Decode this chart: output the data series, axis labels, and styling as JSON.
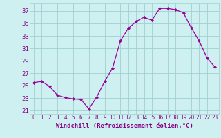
{
  "x": [
    0,
    1,
    2,
    3,
    4,
    5,
    6,
    7,
    8,
    9,
    10,
    11,
    12,
    13,
    14,
    15,
    16,
    17,
    18,
    19,
    20,
    21,
    22,
    23
  ],
  "y": [
    25.5,
    25.7,
    24.9,
    23.5,
    23.1,
    22.9,
    22.8,
    21.3,
    23.2,
    25.7,
    27.8,
    32.2,
    34.2,
    35.3,
    36.0,
    35.5,
    37.4,
    37.4,
    37.2,
    36.7,
    34.3,
    32.2,
    29.5,
    28.0
  ],
  "line_color": "#990099",
  "marker": "D",
  "marker_size": 2,
  "xlabel": "Windchill (Refroidissement éolien,°C)",
  "xlim": [
    -0.5,
    23.5
  ],
  "ylim": [
    20.5,
    38.2
  ],
  "yticks": [
    21,
    23,
    25,
    27,
    29,
    31,
    33,
    35,
    37
  ],
  "xticks": [
    0,
    1,
    2,
    3,
    4,
    5,
    6,
    7,
    8,
    9,
    10,
    11,
    12,
    13,
    14,
    15,
    16,
    17,
    18,
    19,
    20,
    21,
    22,
    23
  ],
  "bg_color": "#cff0f0",
  "grid_color": "#a0d0d0",
  "tick_color": "#880088",
  "label_color": "#880088",
  "xlabel_fontsize": 6.5,
  "ytick_fontsize": 6.5,
  "xtick_fontsize": 5.5
}
